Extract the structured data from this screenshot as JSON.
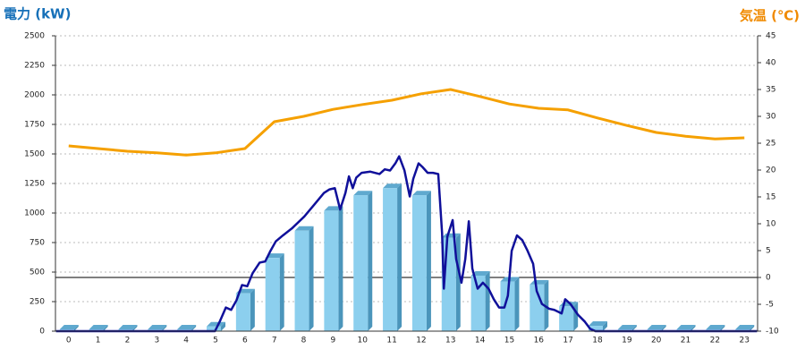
{
  "chart_data": {
    "type": "combo",
    "title": "電力 (kW)",
    "y2_title": "気温 (℃)",
    "categories": [
      "0",
      "1",
      "2",
      "3",
      "4",
      "5",
      "6",
      "7",
      "8",
      "9",
      "10",
      "11",
      "12",
      "13",
      "14",
      "15",
      "16",
      "17",
      "18",
      "19",
      "20",
      "21",
      "22",
      "23"
    ],
    "xlim": [
      -0.45,
      23.45
    ],
    "ylim": [
      0,
      2500
    ],
    "yticks": [
      0,
      250,
      500,
      750,
      1000,
      1250,
      1500,
      1750,
      2000,
      2250,
      2500
    ],
    "y2lim": [
      -10,
      45
    ],
    "y2ticks": [
      -10,
      -5,
      0,
      5,
      10,
      15,
      20,
      25,
      30,
      35,
      40,
      45
    ],
    "grid": true,
    "y2_zero_line": true,
    "series": [
      {
        "type": "bar",
        "color": "#8ccfee",
        "axis": "y",
        "values": [
          15,
          15,
          15,
          15,
          15,
          40,
          320,
          620,
          850,
          1020,
          1150,
          1210,
          1150,
          790,
          470,
          420,
          395,
          210,
          45,
          15,
          15,
          15,
          15,
          15
        ]
      },
      {
        "type": "line",
        "color": "#10109a",
        "axis": "y",
        "x": [
          -0.43,
          4.98,
          5.14,
          5.35,
          5.53,
          5.71,
          5.9,
          6.08,
          6.26,
          6.5,
          6.69,
          6.87,
          7.05,
          7.29,
          7.6,
          8.02,
          8.39,
          8.69,
          8.88,
          9.06,
          9.24,
          9.42,
          9.54,
          9.67,
          9.79,
          9.97,
          10.27,
          10.58,
          10.76,
          10.94,
          11.12,
          11.25,
          11.43,
          11.61,
          11.73,
          11.91,
          12.04,
          12.22,
          12.4,
          12.58,
          12.71,
          12.77,
          12.89,
          13.07,
          13.19,
          13.37,
          13.5,
          13.62,
          13.74,
          13.92,
          14.1,
          14.29,
          14.47,
          14.65,
          14.83,
          14.95,
          15.08,
          15.26,
          15.44,
          15.62,
          15.81,
          15.93,
          16.11,
          16.35,
          16.53,
          16.78,
          16.9,
          17.08,
          17.33,
          17.57,
          17.75,
          17.93,
          23.43
        ],
        "values": [
          0,
          0,
          80,
          200,
          180,
          260,
          390,
          380,
          490,
          580,
          590,
          680,
          760,
          810,
          870,
          970,
          1080,
          1170,
          1200,
          1210,
          1030,
          1170,
          1310,
          1210,
          1300,
          1340,
          1350,
          1330,
          1370,
          1360,
          1420,
          1480,
          1360,
          1140,
          1290,
          1420,
          1390,
          1340,
          1340,
          1330,
          830,
          360,
          800,
          940,
          610,
          410,
          610,
          930,
          530,
          360,
          410,
          360,
          270,
          200,
          200,
          300,
          680,
          810,
          770,
          680,
          570,
          340,
          230,
          190,
          180,
          150,
          270,
          230,
          140,
          80,
          20,
          0,
          0
        ]
      },
      {
        "type": "line",
        "color": "#f5a000",
        "axis": "y2",
        "x": [
          0,
          1,
          2,
          3,
          4,
          5,
          6,
          7,
          8,
          9,
          10,
          11,
          12,
          13,
          14,
          15,
          16,
          17,
          18,
          19,
          20,
          21,
          22,
          23
        ],
        "values": [
          24.5,
          24,
          23.5,
          23.2,
          22.8,
          23.2,
          24,
          29,
          30,
          31.3,
          32.2,
          33,
          34.2,
          35,
          33.7,
          32.3,
          31.5,
          31.2,
          29.7,
          28.3,
          27,
          26.3,
          25.8,
          26
        ]
      }
    ]
  }
}
